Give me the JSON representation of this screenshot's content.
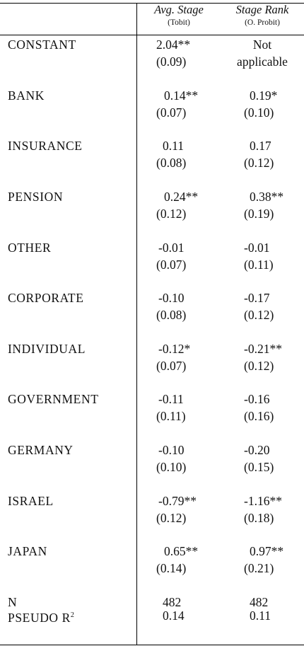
{
  "columns": [
    {
      "title": "Avg. Stage",
      "subtitle": "(Tobit)"
    },
    {
      "title": "Stage Rank",
      "subtitle": "(O. Probit)"
    }
  ],
  "rows": [
    {
      "label": "CONSTANT",
      "avg": "2.04**",
      "avg_se": "(0.09)",
      "rank": "Not",
      "rank_se": "applicable"
    },
    {
      "label": "BANK",
      "avg": "0.14**",
      "avg_se": "(0.07)",
      "rank": "0.19*",
      "rank_se": "(0.10)"
    },
    {
      "label": "INSURANCE",
      "avg": "0.11",
      "avg_se": "(0.08)",
      "rank": "0.17",
      "rank_se": "(0.12)"
    },
    {
      "label": "PENSION",
      "avg": "0.24**",
      "avg_se": "(0.12)",
      "rank": "0.38**",
      "rank_se": "(0.19)"
    },
    {
      "label": "OTHER",
      "avg": "-0.01",
      "avg_se": "(0.07)",
      "rank": "-0.01",
      "rank_se": "(0.11)"
    },
    {
      "label": "CORPORATE",
      "avg": "-0.10",
      "avg_se": "(0.08)",
      "rank": "-0.17",
      "rank_se": "(0.12)"
    },
    {
      "label": "INDIVIDUAL",
      "avg": "-0.12*",
      "avg_se": "(0.07)",
      "rank": "-0.21**",
      "rank_se": "(0.12)"
    },
    {
      "label": "GOVERNMENT",
      "avg": "-0.11",
      "avg_se": "(0.11)",
      "rank": "-0.16",
      "rank_se": "(0.16)"
    },
    {
      "label": "GERMANY",
      "avg": "-0.10",
      "avg_se": "(0.10)",
      "rank": "-0.20",
      "rank_se": "(0.15)"
    },
    {
      "label": "ISRAEL",
      "avg": "-0.79**",
      "avg_se": "(0.12)",
      "rank": "-1.16**",
      "rank_se": "(0.18)"
    },
    {
      "label": "JAPAN",
      "avg": "0.65**",
      "avg_se": "(0.14)",
      "rank": "0.97**",
      "rank_se": "(0.21)"
    }
  ],
  "summary": {
    "n_label": "N",
    "n_avg": "482",
    "n_rank": "482",
    "r2_label": "PSEUDO R",
    "r2_sup": "2",
    "r2_avg": "0.14",
    "r2_rank": "0.11"
  }
}
